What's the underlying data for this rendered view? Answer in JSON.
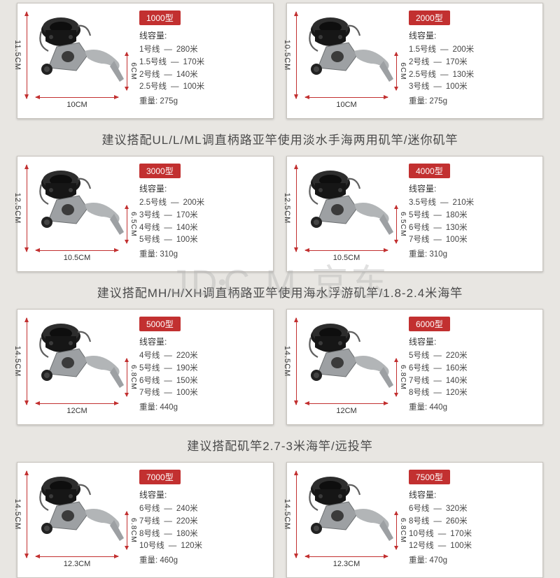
{
  "watermark": {
    "left": "JD",
    "right": "C  M 京东"
  },
  "capacity_label": "线容量:",
  "weight_label": "重量:",
  "captions": [
    "建议搭配UL/L/ML调直柄路亚竿使用淡水手海两用矶竿/迷你矶竿",
    "建议搭配MH/H/XH调直柄路亚竿使用海水浮游矶竿/1.8-2.4米海竿",
    "建议搭配矶竿2.7-3米海竿/远投竿"
  ],
  "cards": [
    {
      "badge": "1000型",
      "dims": {
        "height": "11.5CM",
        "sheight": "6CM",
        "width": "10CM"
      },
      "lines": [
        [
          "1号线",
          "280米"
        ],
        [
          "1.5号线",
          "170米"
        ],
        [
          "2号线",
          "140米"
        ],
        [
          "2.5号线",
          "100米"
        ]
      ],
      "weight": "275g"
    },
    {
      "badge": "2000型",
      "dims": {
        "height": "10.5CM",
        "sheight": "6CM",
        "width": "10CM"
      },
      "lines": [
        [
          "1.5号线",
          "200米"
        ],
        [
          "2号线",
          "170米"
        ],
        [
          "2.5号线",
          "130米"
        ],
        [
          "3号线",
          "100米"
        ]
      ],
      "weight": "275g"
    },
    {
      "badge": "3000型",
      "dims": {
        "height": "12.5CM",
        "sheight": "6.5CM",
        "width": "10.5CM"
      },
      "lines": [
        [
          "2.5号线",
          "200米"
        ],
        [
          "3号线",
          "170米"
        ],
        [
          "4号线",
          "140米"
        ],
        [
          "5号线",
          "100米"
        ]
      ],
      "weight": "310g"
    },
    {
      "badge": "4000型",
      "dims": {
        "height": "12.5CM",
        "sheight": "6.5CM",
        "width": "10.5CM"
      },
      "lines": [
        [
          "3.5号线",
          "210米"
        ],
        [
          "5号线",
          "180米"
        ],
        [
          "6号线",
          "130米"
        ],
        [
          "7号线",
          "100米"
        ]
      ],
      "weight": "310g"
    },
    {
      "badge": "5000型",
      "dims": {
        "height": "14.5CM",
        "sheight": "6.8CM",
        "width": "12CM"
      },
      "lines": [
        [
          "4号线",
          "220米"
        ],
        [
          "5号线",
          "190米"
        ],
        [
          "6号线",
          "150米"
        ],
        [
          "7号线",
          "100米"
        ]
      ],
      "weight": "440g"
    },
    {
      "badge": "6000型",
      "dims": {
        "height": "14.5CM",
        "sheight": "6.8CM",
        "width": "12CM"
      },
      "lines": [
        [
          "5号线",
          "220米"
        ],
        [
          "6号线",
          "160米"
        ],
        [
          "7号线",
          "140米"
        ],
        [
          "8号线",
          "120米"
        ]
      ],
      "weight": "440g"
    },
    {
      "badge": "7000型",
      "dims": {
        "height": "14.5CM",
        "sheight": "6.8CM",
        "width": "12.3CM"
      },
      "lines": [
        [
          "6号线",
          "240米"
        ],
        [
          "7号线",
          "220米"
        ],
        [
          "8号线",
          "180米"
        ],
        [
          "10号线",
          "120米"
        ]
      ],
      "weight": "460g"
    },
    {
      "badge": "7500型",
      "dims": {
        "height": "14.5CM",
        "sheight": "6.8CM",
        "width": "12.3CM"
      },
      "lines": [
        [
          "6号线",
          "320米"
        ],
        [
          "8号线",
          "260米"
        ],
        [
          "10号线",
          "170米"
        ],
        [
          "12号线",
          "100米"
        ]
      ],
      "weight": "470g"
    }
  ],
  "colors": {
    "accent": "#c23030",
    "card_bg": "#ffffff",
    "page_bg": "#e8e6e2",
    "text": "#444444",
    "caption_text": "#4a4a4a"
  }
}
